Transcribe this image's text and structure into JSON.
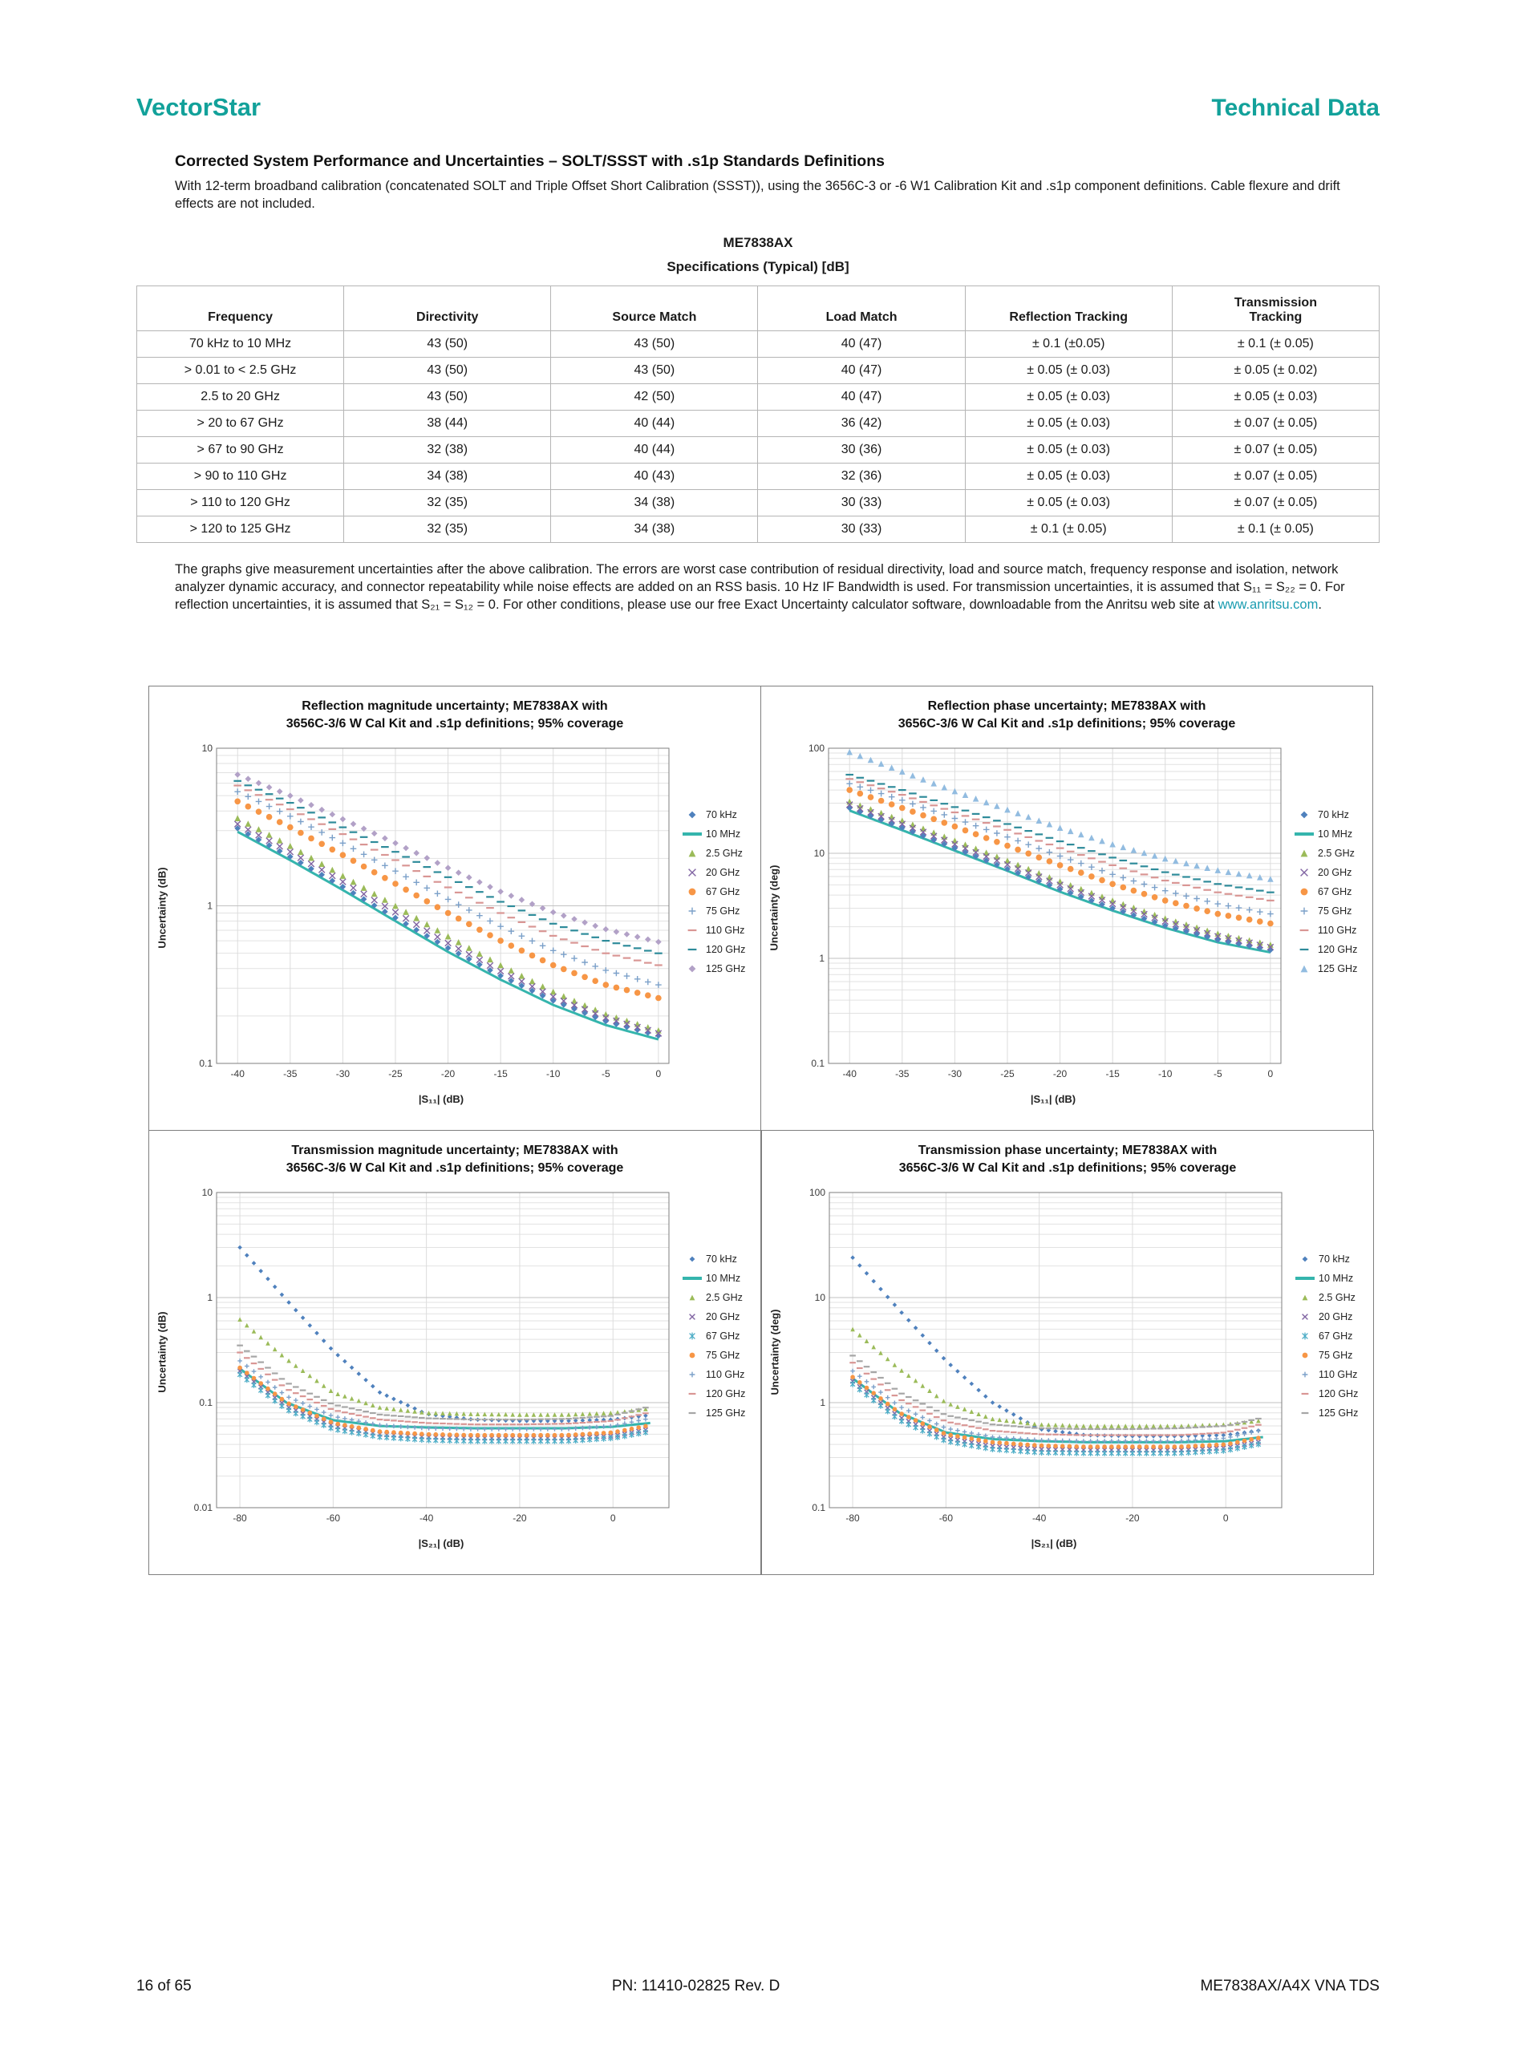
{
  "colors": {
    "accent": "#12a19a",
    "link": "#1a9cb0"
  },
  "header": {
    "brand": "VectorStar",
    "doc_type": "Technical Data"
  },
  "section": {
    "title": "Corrected System Performance and Uncertainties – SOLT/SSST with .s1p Standards Definitions",
    "intro": "With 12-term broadband calibration (concatenated SOLT and Triple Offset Short Calibration (SSST)), using the 3656C-3 or -6 W1 Calibration Kit and .s1p component definitions. Cable flexure and drift effects are not included."
  },
  "spec_table": {
    "model": "ME7838AX",
    "subtitle": "Specifications (Typical) [dB]",
    "columns": [
      "Frequency",
      "Directivity",
      "Source Match",
      "Load Match",
      "Reflection Tracking",
      "Transmission\nTracking"
    ],
    "rows": [
      [
        "70 kHz to 10 MHz",
        "43 (50)",
        "43 (50)",
        "40 (47)",
        "± 0.1 (±0.05)",
        "± 0.1 (± 0.05)"
      ],
      [
        "> 0.01 to < 2.5 GHz",
        "43 (50)",
        "43 (50)",
        "40 (47)",
        "± 0.05 (± 0.03)",
        "± 0.05 (± 0.02)"
      ],
      [
        "2.5 to 20 GHz",
        "43 (50)",
        "42 (50)",
        "40 (47)",
        "± 0.05 (± 0.03)",
        "± 0.05 (± 0.03)"
      ],
      [
        "> 20 to 67 GHz",
        "38 (44)",
        "40 (44)",
        "36 (42)",
        "± 0.05 (± 0.03)",
        "± 0.07 (± 0.05)"
      ],
      [
        "> 67 to 90 GHz",
        "32 (38)",
        "40 (44)",
        "30 (36)",
        "± 0.05 (± 0.03)",
        "± 0.07 (± 0.05)"
      ],
      [
        "> 90 to 110 GHz",
        "34 (38)",
        "40 (43)",
        "32 (36)",
        "± 0.05 (± 0.03)",
        "± 0.07 (± 0.05)"
      ],
      [
        "> 110 to 120 GHz",
        "32 (35)",
        "34 (38)",
        "30 (33)",
        "± 0.05 (± 0.03)",
        "± 0.07 (± 0.05)"
      ],
      [
        "> 120 to 125 GHz",
        "32 (35)",
        "34 (38)",
        "30 (33)",
        "± 0.1 (± 0.05)",
        "± 0.1 (± 0.05)"
      ]
    ]
  },
  "notes": {
    "body_before": "The graphs give measurement uncertainties after the above calibration. The errors are worst case contribution of residual directivity, load and source match, frequency response and isolation, network analyzer dynamic accuracy, and connector repeatability while noise effects are added on an RSS basis. 10 Hz IF Bandwidth is used. For transmission uncertainties, it is assumed that S₁₁ = S₂₂ = 0. For reflection uncertainties, it is assumed that S₂₁ = S₁₂ = 0. For other conditions, please use our free Exact Uncertainty calculator software, downloadable from the Anritsu web site at ",
    "link_text": "www.anritsu.com",
    "body_after": "."
  },
  "chart_data": [
    {
      "id": "reflection-magnitude",
      "type": "scatter",
      "title1": "Reflection magnitude uncertainty; ME7838AX with",
      "title2": "3656C-3/6 W Cal Kit and .s1p definitions; 95% coverage",
      "xlabel": "|S₁₁| (dB)",
      "ylabel": "Uncertainty (dB)",
      "xlim": [
        -42,
        1
      ],
      "xticks": [
        -40,
        -35,
        -30,
        -25,
        -20,
        -15,
        -10,
        -5,
        0
      ],
      "ylim": [
        0.1,
        10
      ],
      "marker_step": 1,
      "marker_size": 3.8,
      "x": [
        -40,
        -35,
        -30,
        -25,
        -20,
        -15,
        -10,
        -5,
        0
      ],
      "series": [
        {
          "name": "70 kHz",
          "marker": "diamond",
          "color": "#4F81BD",
          "values": [
            3.1,
            2.05,
            1.32,
            0.84,
            0.54,
            0.36,
            0.25,
            0.185,
            0.15
          ]
        },
        {
          "name": "10 MHz",
          "marker": "line",
          "color": "#35B5AD",
          "values": [
            2.95,
            1.95,
            1.26,
            0.8,
            0.51,
            0.34,
            0.235,
            0.175,
            0.142
          ]
        },
        {
          "name": "2.5 GHz",
          "marker": "triangle",
          "color": "#9BBB59",
          "values": [
            3.6,
            2.4,
            1.55,
            1.0,
            0.64,
            0.42,
            0.285,
            0.205,
            0.162
          ]
        },
        {
          "name": "20 GHz",
          "marker": "x",
          "color": "#8064A2",
          "values": [
            3.3,
            2.2,
            1.42,
            0.91,
            0.58,
            0.385,
            0.265,
            0.195,
            0.155
          ]
        },
        {
          "name": "67 GHz",
          "marker": "circle",
          "color": "#F79646",
          "values": [
            4.6,
            3.15,
            2.1,
            1.38,
            0.9,
            0.6,
            0.42,
            0.315,
            0.26
          ]
        },
        {
          "name": "75 GHz",
          "marker": "plus",
          "color": "#7BA0C9",
          "values": [
            5.3,
            3.7,
            2.5,
            1.66,
            1.1,
            0.74,
            0.52,
            0.39,
            0.315
          ]
        },
        {
          "name": "110 GHz",
          "marker": "dash",
          "color": "#D99694",
          "values": [
            5.8,
            4.1,
            2.85,
            1.95,
            1.31,
            0.9,
            0.645,
            0.5,
            0.42
          ]
        },
        {
          "name": "120 GHz",
          "marker": "dash",
          "color": "#2E8B9A",
          "values": [
            6.2,
            4.5,
            3.15,
            2.2,
            1.52,
            1.06,
            0.77,
            0.6,
            0.5
          ]
        },
        {
          "name": "125 GHz",
          "marker": "diamond",
          "color": "#B2A1C7",
          "values": [
            6.8,
            5.0,
            3.55,
            2.5,
            1.74,
            1.23,
            0.91,
            0.71,
            0.59
          ]
        }
      ]
    },
    {
      "id": "reflection-phase",
      "type": "scatter",
      "title1": "Reflection phase uncertainty; ME7838AX with",
      "title2": "3656C-3/6 W Cal Kit and .s1p definitions; 95% coverage",
      "xlabel": "|S₁₁| (dB)",
      "ylabel": "Uncertainty (deg)",
      "xlim": [
        -42,
        1
      ],
      "xticks": [
        -40,
        -35,
        -30,
        -25,
        -20,
        -15,
        -10,
        -5,
        0
      ],
      "ylim": [
        0.1,
        100
      ],
      "marker_step": 1,
      "marker_size": 3.8,
      "x": [
        -40,
        -35,
        -30,
        -25,
        -20,
        -15,
        -10,
        -5,
        0
      ],
      "series": [
        {
          "name": "70 kHz",
          "marker": "diamond",
          "color": "#4F81BD",
          "values": [
            27,
            17.5,
            11.2,
            7.1,
            4.55,
            3.0,
            2.05,
            1.5,
            1.2
          ]
        },
        {
          "name": "10 MHz",
          "marker": "line",
          "color": "#35B5AD",
          "values": [
            25.5,
            16.6,
            10.6,
            6.8,
            4.3,
            2.85,
            1.95,
            1.42,
            1.14
          ]
        },
        {
          "name": "2.5 GHz",
          "marker": "triangle",
          "color": "#9BBB59",
          "values": [
            31,
            20.5,
            13.2,
            8.5,
            5.4,
            3.55,
            2.4,
            1.72,
            1.35
          ]
        },
        {
          "name": "20 GHz",
          "marker": "x",
          "color": "#8064A2",
          "values": [
            29,
            19,
            12.2,
            7.8,
            5.0,
            3.3,
            2.25,
            1.62,
            1.28
          ]
        },
        {
          "name": "67 GHz",
          "marker": "circle",
          "color": "#F79646",
          "values": [
            40,
            27,
            18,
            11.8,
            7.7,
            5.1,
            3.55,
            2.65,
            2.15
          ]
        },
        {
          "name": "75 GHz",
          "marker": "plus",
          "color": "#7BA0C9",
          "values": [
            46,
            32,
            21.5,
            14.3,
            9.4,
            6.3,
            4.4,
            3.3,
            2.65
          ]
        },
        {
          "name": "110 GHz",
          "marker": "dash",
          "color": "#D99694",
          "values": [
            51,
            36,
            24.5,
            16.7,
            11.2,
            7.7,
            5.5,
            4.25,
            3.55
          ]
        },
        {
          "name": "120 GHz",
          "marker": "dash",
          "color": "#2E8B9A",
          "values": [
            56,
            40,
            27.5,
            19,
            13,
            9.1,
            6.6,
            5.1,
            4.25
          ]
        },
        {
          "name": "125 GHz",
          "marker": "triangle",
          "color": "#92BCE0",
          "values": [
            92,
            60,
            39,
            26,
            17.5,
            12.2,
            8.9,
            6.9,
            5.7
          ]
        }
      ]
    },
    {
      "id": "transmission-magnitude",
      "type": "scatter",
      "title1": "Transmission magnitude uncertainty; ME7838AX with",
      "title2": "3656C-3/6 W Cal Kit and .s1p definitions;  95% coverage",
      "xlabel": "|S₂₁| (dB)",
      "ylabel": "Uncertainty (dB)",
      "xlim": [
        -85,
        12
      ],
      "xticks": [
        -80,
        -60,
        -40,
        -20,
        0
      ],
      "ylim": [
        0.01,
        10
      ],
      "marker_step": 1.5,
      "marker_size": 2.8,
      "x": [
        -80,
        -70,
        -60,
        -50,
        -40,
        -30,
        -20,
        -10,
        0,
        8
      ],
      "series": [
        {
          "name": "70 kHz",
          "marker": "diamond",
          "color": "#4F81BD",
          "values": [
            3.0,
            0.95,
            0.31,
            0.125,
            0.078,
            0.069,
            0.067,
            0.067,
            0.069,
            0.076
          ]
        },
        {
          "name": "10 MHz",
          "marker": "line",
          "color": "#35B5AD",
          "values": [
            0.21,
            0.1,
            0.068,
            0.06,
            0.058,
            0.057,
            0.057,
            0.057,
            0.059,
            0.064
          ]
        },
        {
          "name": "2.5 GHz",
          "marker": "triangle",
          "color": "#9BBB59",
          "values": [
            0.62,
            0.26,
            0.125,
            0.09,
            0.08,
            0.078,
            0.077,
            0.077,
            0.08,
            0.088
          ]
        },
        {
          "name": "20 GHz",
          "marker": "x",
          "color": "#8064A2",
          "values": [
            0.2,
            0.092,
            0.06,
            0.05,
            0.047,
            0.046,
            0.046,
            0.046,
            0.048,
            0.056
          ]
        },
        {
          "name": "67 GHz",
          "marker": "star",
          "color": "#4BACC6",
          "values": [
            0.185,
            0.086,
            0.056,
            0.047,
            0.044,
            0.043,
            0.043,
            0.043,
            0.046,
            0.053
          ]
        },
        {
          "name": "75 GHz",
          "marker": "circle",
          "color": "#F79646",
          "values": [
            0.215,
            0.1,
            0.064,
            0.053,
            0.05,
            0.049,
            0.049,
            0.049,
            0.052,
            0.061
          ]
        },
        {
          "name": "110 GHz",
          "marker": "plus",
          "color": "#7BA0C9",
          "values": [
            0.25,
            0.115,
            0.074,
            0.061,
            0.057,
            0.056,
            0.056,
            0.056,
            0.06,
            0.071
          ]
        },
        {
          "name": "120 GHz",
          "marker": "dash",
          "color": "#D99694",
          "values": [
            0.3,
            0.135,
            0.085,
            0.069,
            0.064,
            0.062,
            0.062,
            0.063,
            0.067,
            0.081
          ]
        },
        {
          "name": "125 GHz",
          "marker": "dash",
          "color": "#A6A6A6",
          "values": [
            0.35,
            0.155,
            0.096,
            0.077,
            0.071,
            0.069,
            0.069,
            0.07,
            0.075,
            0.092
          ]
        }
      ]
    },
    {
      "id": "transmission-phase",
      "type": "scatter",
      "title1": "Transmission phase uncertainty; ME7838AX with",
      "title2": "3656C-3/6 W Cal Kit and .s1p definitions; 95% coverage",
      "xlabel": "|S₂₁| (dB)",
      "ylabel": "Uncertainty (deg)",
      "xlim": [
        -85,
        12
      ],
      "xticks": [
        -80,
        -60,
        -40,
        -20,
        0
      ],
      "ylim": [
        0.1,
        100
      ],
      "marker_step": 1.5,
      "marker_size": 2.8,
      "x": [
        -80,
        -70,
        -60,
        -50,
        -40,
        -30,
        -20,
        -10,
        0,
        8
      ],
      "series": [
        {
          "name": "70 kHz",
          "marker": "diamond",
          "color": "#4F81BD",
          "values": [
            24,
            7.6,
            2.5,
            1.0,
            0.56,
            0.49,
            0.48,
            0.48,
            0.49,
            0.55
          ]
        },
        {
          "name": "10 MHz",
          "marker": "line",
          "color": "#35B5AD",
          "values": [
            1.7,
            0.8,
            0.52,
            0.45,
            0.43,
            0.42,
            0.42,
            0.42,
            0.43,
            0.47
          ]
        },
        {
          "name": "2.5 GHz",
          "marker": "triangle",
          "color": "#9BBB59",
          "values": [
            5.0,
            2.1,
            1.0,
            0.7,
            0.62,
            0.6,
            0.6,
            0.6,
            0.62,
            0.68
          ]
        },
        {
          "name": "20 GHz",
          "marker": "x",
          "color": "#8064A2",
          "values": [
            1.6,
            0.73,
            0.46,
            0.385,
            0.36,
            0.355,
            0.353,
            0.353,
            0.37,
            0.43
          ]
        },
        {
          "name": "67 GHz",
          "marker": "star",
          "color": "#4BACC6",
          "values": [
            1.5,
            0.68,
            0.43,
            0.36,
            0.335,
            0.33,
            0.33,
            0.33,
            0.35,
            0.41
          ]
        },
        {
          "name": "75 GHz",
          "marker": "circle",
          "color": "#F79646",
          "values": [
            1.75,
            0.8,
            0.5,
            0.42,
            0.39,
            0.38,
            0.38,
            0.38,
            0.4,
            0.47
          ]
        },
        {
          "name": "110 GHz",
          "marker": "plus",
          "color": "#7BA0C9",
          "values": [
            2.0,
            0.92,
            0.57,
            0.47,
            0.44,
            0.43,
            0.43,
            0.43,
            0.46,
            0.55
          ]
        },
        {
          "name": "120 GHz",
          "marker": "dash",
          "color": "#D99694",
          "values": [
            2.4,
            1.08,
            0.66,
            0.54,
            0.5,
            0.49,
            0.49,
            0.49,
            0.52,
            0.63
          ]
        },
        {
          "name": "125 GHz",
          "marker": "dash",
          "color": "#A6A6A6",
          "values": [
            2.8,
            1.25,
            0.76,
            0.62,
            0.57,
            0.56,
            0.56,
            0.57,
            0.6,
            0.72
          ]
        }
      ]
    }
  ],
  "footer": {
    "page": "16 of 65",
    "pn": "PN: 11410-02825 Rev. D",
    "doc": "ME7838AX/A4X VNA TDS"
  }
}
